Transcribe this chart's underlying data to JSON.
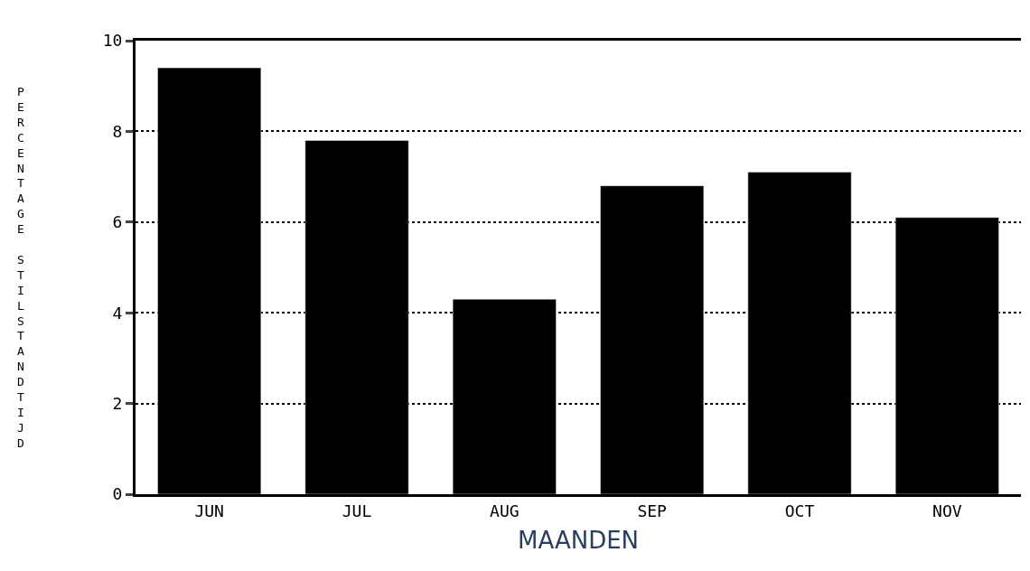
{
  "chart_data": {
    "type": "bar",
    "xlabel": "MAANDEN",
    "ylabel": "PERCENTAGE STILSTANDTIJD",
    "categories": [
      "JUN",
      "JUL",
      "AUG",
      "SEP",
      "OCT",
      "NOV"
    ],
    "values": [
      9.4,
      7.8,
      4.3,
      6.8,
      7.1,
      6.1
    ],
    "color": "#000000",
    "ylim": [
      0,
      10
    ],
    "yticks": [
      0,
      2,
      4,
      6,
      8,
      10
    ],
    "grid": "y",
    "line_style": "dotted"
  }
}
